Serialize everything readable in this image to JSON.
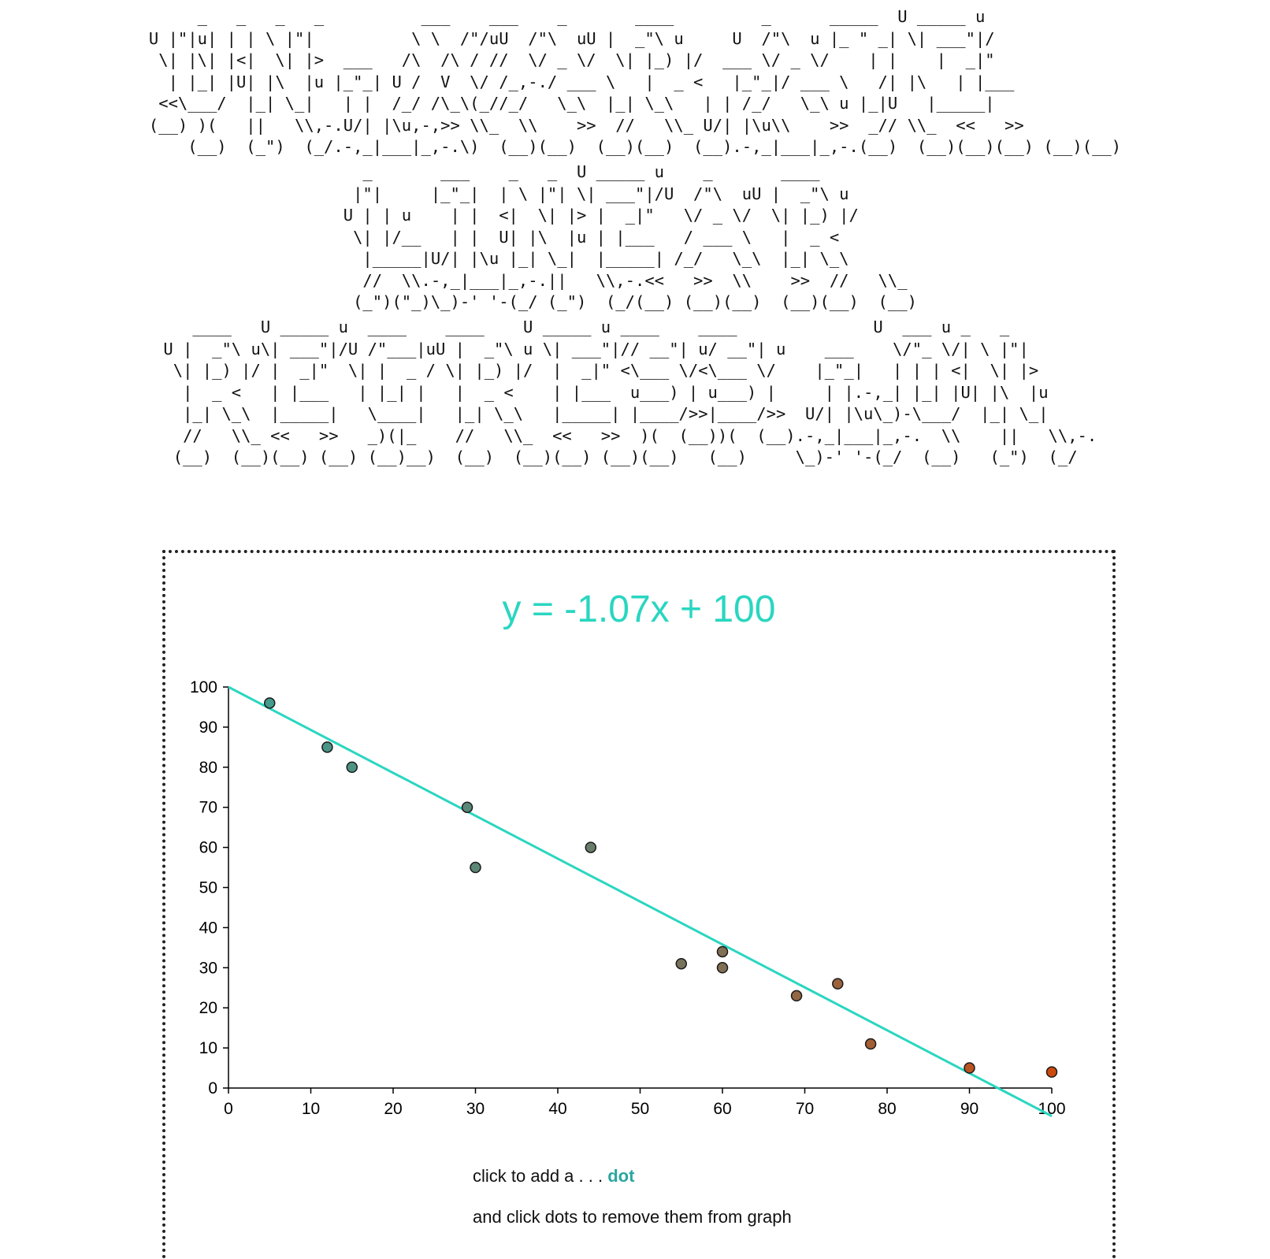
{
  "title_ascii": [
    "     _   _   _   _          ___    ___    _       ____         _      _____  U _____ u\nU |\"|u| | | \\ |\"|          \\ \\  /\"/uU  /\"\\  uU |  _\"\\ u     U  /\"\\  u |_ \" _| \\| ___\"|/\n \\| |\\| |<|  \\| |>  ___   /\\  /\\ / //  \\/ _ \\/  \\| |_) |/  ___ \\/ _ \\/    | |    |  _|\"  \n  | |_| |U| |\\  |u |_\"_| U /  V  \\/ /_,-./ ___ \\   |  _ <   |_\"_|/ ___ \\   /| |\\   | |___  \n <<\\___/  |_| \\_|   | |  /_/ /\\_\\(_//_/   \\_\\  |_| \\_\\   | | /_/   \\_\\ u |_|U   |_____| \n(__) )(   ||   \\\\,-.U/| |\\u,-,>> \\\\_  \\\\    >>  //   \\\\_ U/| |\\u\\\\    >>  _// \\\\_  <<   >> \n    (__)  (_\")  (_/.-,_|___|_,-.\\)  (__)(__)  (__)(__)  (__).-,_|___|_,-.(__)  (__)(__)(__) (__)(__)",
    "  _       ___    _   _  U _____ u    _       ____     \n |\"|     |_\"_|  | \\ |\"| \\| ___\"|/U  /\"\\  uU |  _\"\\ u  \nU | | u    | |  <|  \\| |> |  _|\"   \\/ _ \\/  \\| |_) |/  \n \\| |/__   | |  U| |\\  |u | |___   / ___ \\   |  _ <    \n  |_____|U/| |\\u |_| \\_|  |_____| /_/   \\_\\  |_| \\_\\   \n  //  \\\\.-,_|___|_,-.||   \\\\,-.<<   >>  \\\\    >>  //   \\\\_  \n (_\")(\"_)\\_)-' '-(_/ (_\")  (_/(__) (__)(__)  (__)(__)  (__) ",
    "   ____   U _____ u  ____    ____    U _____ u ____    ____              U  ___ u _   _     \nU |  _\"\\ u\\| ___\"|/U /\"___|uU |  _\"\\ u \\| ___\"|// __\"| u/ __\"| u    ___    \\/\"_ \\/| \\ |\"|    \n \\| |_) |/ |  _|\"  \\| |  _ / \\| |_) |/  |  _|\" <\\___ \\/<\\___ \\/    |_\"_|   | | | <|  \\| |>   \n  |  _ <   | |___   | |_| |   |  _ <    | |___  u___) | u___) |     | |.-,_| |_| |U| |\\  |u   \n  |_| \\_\\  |_____|   \\____|   |_| \\_\\   |_____| |____/>>|____/>>  U/| |\\u\\_)-\\___/  |_| \\_|    \n  //   \\\\_ <<   >>   _)(|_    //   \\\\_  <<   >>  )(  (__))(  (__).-,_|___|_,-.  \\\\    ||   \\\\,-. \n (__)  (__)(__) (__) (__)__)  (__)  (__)(__) (__)(__)   (__)     \\_)-' '-(_/  (__)   (_\")  (_/  "
  ],
  "equation": "y = -1.07x + 100",
  "instructions": {
    "line1_prefix": "click to add a . . . ",
    "line1_emphasis": "dot",
    "line2": "and click dots to remove them from graph"
  },
  "colors": {
    "regression_line": "#2ad6c0",
    "equation_text": "#2ad6c0",
    "dot_word": "#2ba6a0",
    "dot_start": "#3f9e8f",
    "dot_end": "#cc4a0e"
  },
  "chart_data": {
    "type": "scatter",
    "title": "",
    "xlabel": "",
    "ylabel": "",
    "xlim": [
      0,
      100
    ],
    "ylim": [
      0,
      100
    ],
    "x_ticks": [
      0,
      10,
      20,
      30,
      40,
      50,
      60,
      70,
      80,
      90,
      100
    ],
    "y_ticks": [
      0,
      10,
      20,
      30,
      40,
      50,
      60,
      70,
      80,
      90,
      100
    ],
    "grid": false,
    "points": [
      {
        "x": 5,
        "y": 96
      },
      {
        "x": 12,
        "y": 85
      },
      {
        "x": 15,
        "y": 80
      },
      {
        "x": 29,
        "y": 70
      },
      {
        "x": 30,
        "y": 55
      },
      {
        "x": 44,
        "y": 60
      },
      {
        "x": 55,
        "y": 31
      },
      {
        "x": 60,
        "y": 34
      },
      {
        "x": 60,
        "y": 30
      },
      {
        "x": 69,
        "y": 23
      },
      {
        "x": 74,
        "y": 26
      },
      {
        "x": 78,
        "y": 11
      },
      {
        "x": 90,
        "y": 5
      },
      {
        "x": 100,
        "y": 4
      }
    ],
    "regression": {
      "slope": -1.07,
      "intercept": 100,
      "x_range": [
        0,
        100
      ]
    }
  }
}
